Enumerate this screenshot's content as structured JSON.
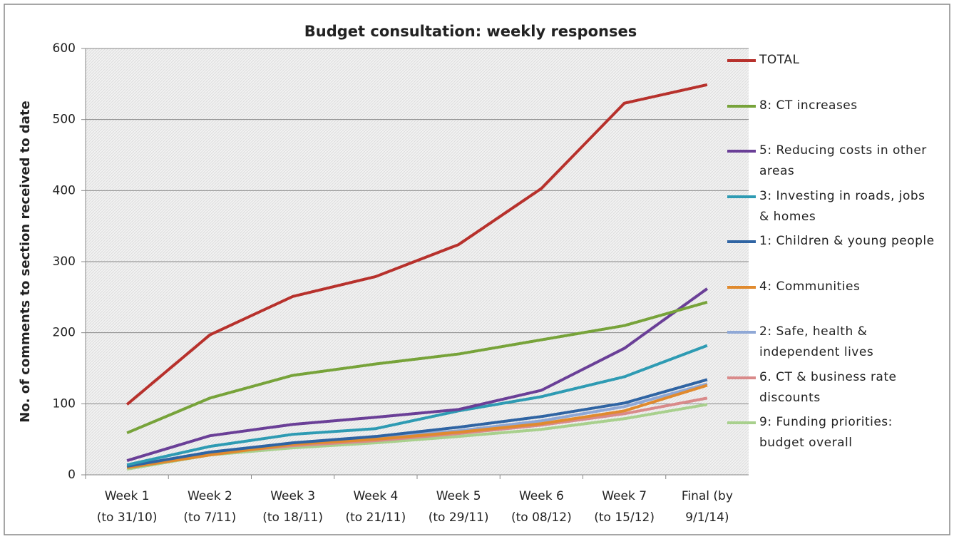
{
  "chart_data": {
    "type": "line",
    "title": "Budget consultation: weekly responses",
    "y_label": "No. of comments to section received to date",
    "categories": [
      "Week 1\n(to 31/10)",
      "Week 2\n(to 7/11)",
      "Week 3\n(to 18/11)",
      "Week 4\n(to 21/11)",
      "Week 5\n(to 29/11)",
      "Week 6\n(to 08/12)",
      "Week 7\n(to 15/12)",
      "Final (by\n9/1/14)"
    ],
    "series": [
      {
        "name": "TOTAL",
        "color": "#b7312c",
        "values": [
          99,
          197,
          251,
          279,
          324,
          403,
          523,
          549
        ]
      },
      {
        "name": "8: CT increases",
        "color": "#77a33a",
        "values": [
          59,
          108,
          140,
          156,
          170,
          190,
          210,
          243
        ]
      },
      {
        "name": "5: Reducing costs in other areas",
        "color": "#6a3f97",
        "values": [
          20,
          55,
          71,
          81,
          92,
          119,
          178,
          262
        ]
      },
      {
        "name": "3: Investing in roads, jobs & homes",
        "color": "#2e9bb3",
        "values": [
          14,
          40,
          57,
          65,
          90,
          110,
          138,
          182
        ]
      },
      {
        "name": "1: Children & young people",
        "color": "#2f64a3",
        "values": [
          12,
          32,
          45,
          54,
          67,
          82,
          101,
          134
        ]
      },
      {
        "name": "4: Communities",
        "color": "#e08a2e",
        "values": [
          10,
          28,
          43,
          50,
          60,
          72,
          90,
          126
        ]
      },
      {
        "name": "2: Safe, health & independent lives",
        "color": "#8fa8d6",
        "values": [
          11,
          30,
          44,
          52,
          62,
          76,
          96,
          128
        ]
      },
      {
        "name": "6. CT & business rate discounts",
        "color": "#d98a8a",
        "values": [
          13,
          30,
          41,
          48,
          58,
          70,
          86,
          108
        ]
      },
      {
        "name": "9: Funding priorities: budget overall",
        "color": "#a8d08d",
        "values": [
          8,
          28,
          38,
          45,
          54,
          64,
          79,
          99
        ]
      }
    ],
    "ylim": [
      0,
      600
    ],
    "yticks": [
      0,
      100,
      200,
      300,
      400,
      500,
      600
    ],
    "grid": true
  }
}
